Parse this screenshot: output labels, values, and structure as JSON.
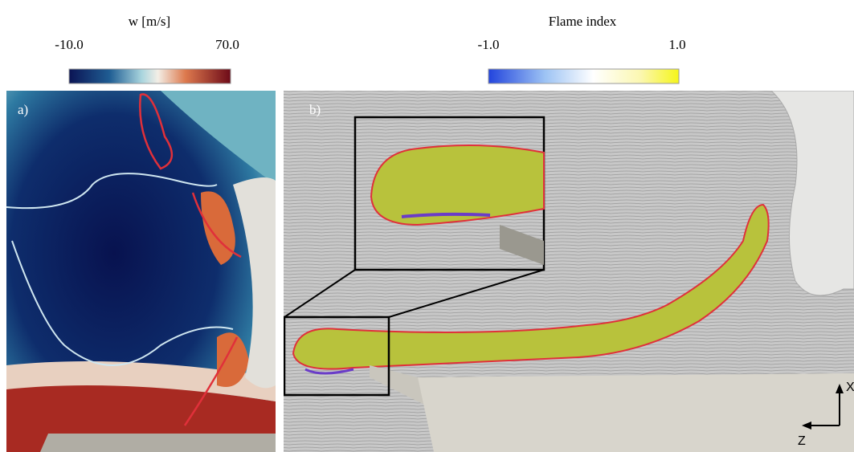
{
  "colorbars": [
    {
      "title": "w [m/s]",
      "min_label": "-10.0",
      "max_label": "70.0"
    },
    {
      "title": "Flame index",
      "min_label": "-1.0",
      "max_label": "1.0"
    }
  ],
  "panels": [
    {
      "label": "a)"
    },
    {
      "label": "b)"
    }
  ],
  "axes": {
    "x": "X",
    "z": "Z"
  }
}
